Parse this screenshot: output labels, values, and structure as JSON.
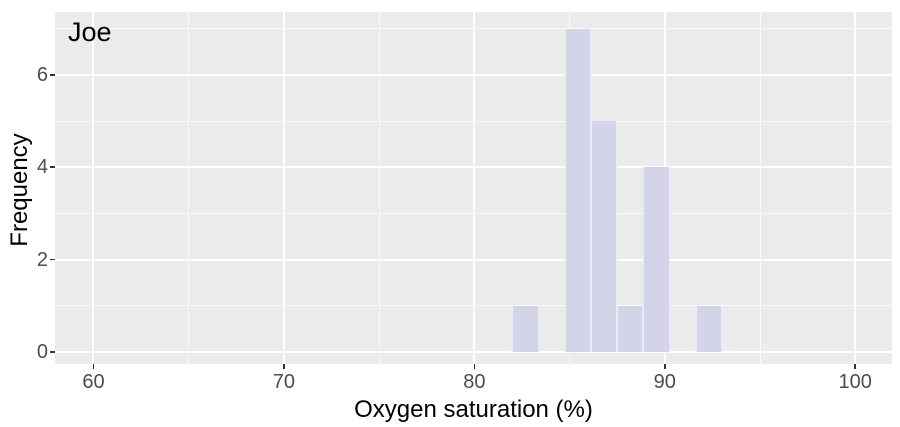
{
  "chart_data": {
    "type": "bar",
    "subtype": "histogram",
    "annotation": "Joe",
    "xlabel": "Oxygen saturation (%)",
    "ylabel": "Frequency",
    "bin_edges": [
      82,
      83.375,
      84.75,
      86.125,
      87.5,
      88.875,
      90.25,
      91.625,
      93
    ],
    "counts": [
      1,
      0,
      7,
      5,
      1,
      4,
      0,
      1
    ],
    "x_ticks": [
      60,
      70,
      80,
      90,
      100
    ],
    "x_minor_ticks": [
      65,
      75,
      85,
      95
    ],
    "y_ticks": [
      0,
      2,
      4,
      6
    ],
    "y_minor_ticks": [
      1,
      3,
      5,
      7
    ],
    "xlim": [
      57.98,
      101.93
    ],
    "ylim": [
      -0.26,
      7.36
    ],
    "grid": true,
    "legend_position": "none",
    "colors": {
      "panel_background": "#ebebeb",
      "outer_background": "#ffffff",
      "bar_fill": "#d3d4e7",
      "grid_major": "#ffffff",
      "grid_minor": "#f5f5f5",
      "tick_label": "#4d4d4d",
      "axis_title": "#000000",
      "annotation_color": "#000000",
      "tick_mark": "#333333"
    }
  }
}
